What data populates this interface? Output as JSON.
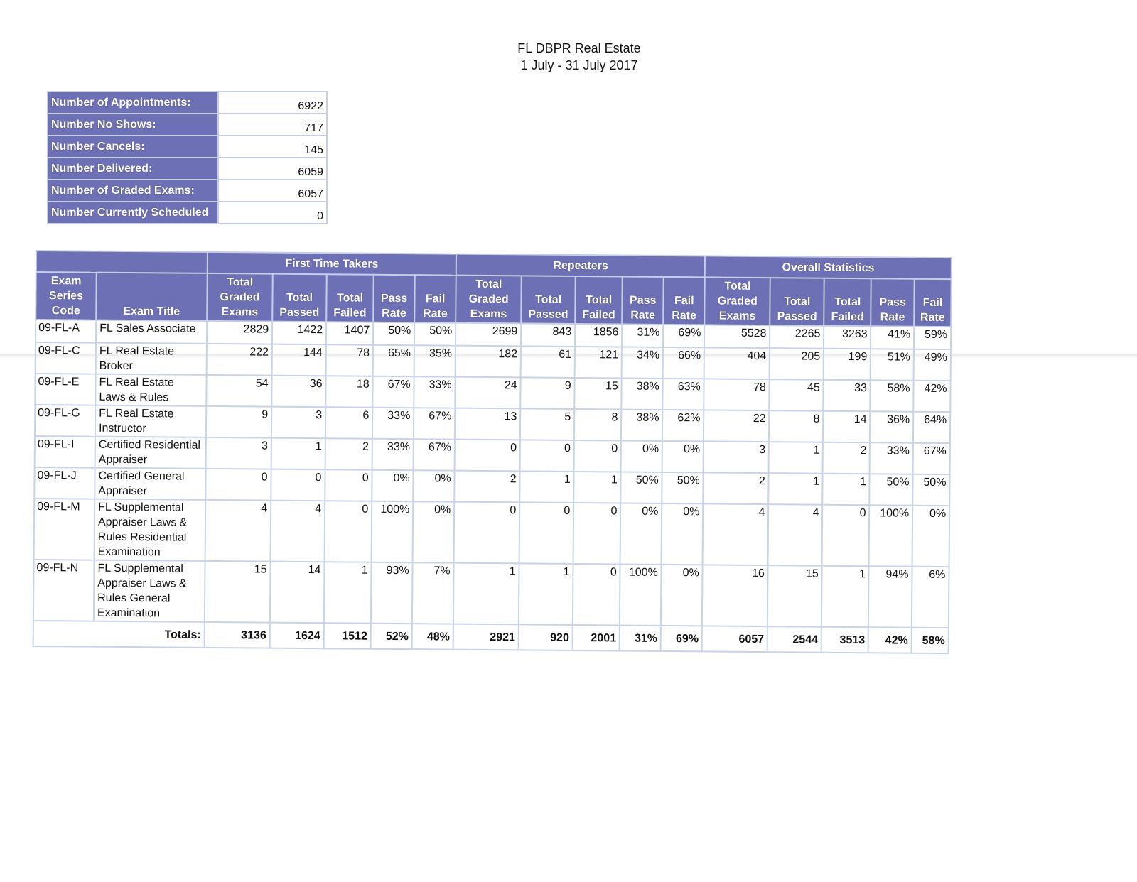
{
  "header": {
    "title": "FL DBPR Real Estate",
    "date_range": "1 July - 31 July 2017"
  },
  "summary": [
    {
      "label": "Number of Appointments:",
      "value": "6922"
    },
    {
      "label": "Number No Shows:",
      "value": "717"
    },
    {
      "label": "Number Cancels:",
      "value": "145"
    },
    {
      "label": "Number Delivered:",
      "value": "6059"
    },
    {
      "label": "Number of Graded Exams:",
      "value": "6057"
    },
    {
      "label": "Number Currently Scheduled",
      "value": "0"
    }
  ],
  "table": {
    "groups": [
      "First Time Takers",
      "Repeaters",
      "Overall Statistics"
    ],
    "columns": {
      "code": "Exam Series Code",
      "title": "Exam Title",
      "graded": "Total Graded Exams",
      "passed": "Total Passed",
      "failed": "Total Failed",
      "pass_rate": "Pass Rate",
      "fail_rate": "Fail Rate"
    },
    "rows": [
      {
        "code": "09-FL-A",
        "title": "FL Sales Associate",
        "ftt": [
          "2829",
          "1422",
          "1407",
          "50%",
          "50%"
        ],
        "rep": [
          "2699",
          "843",
          "1856",
          "31%",
          "69%"
        ],
        "all": [
          "5528",
          "2265",
          "3263",
          "41%",
          "59%"
        ]
      },
      {
        "code": "09-FL-C",
        "title": "FL Real Estate Broker",
        "ftt": [
          "222",
          "144",
          "78",
          "65%",
          "35%"
        ],
        "rep": [
          "182",
          "61",
          "121",
          "34%",
          "66%"
        ],
        "all": [
          "404",
          "205",
          "199",
          "51%",
          "49%"
        ]
      },
      {
        "code": "09-FL-E",
        "title": "FL Real Estate Laws & Rules",
        "ftt": [
          "54",
          "36",
          "18",
          "67%",
          "33%"
        ],
        "rep": [
          "24",
          "9",
          "15",
          "38%",
          "63%"
        ],
        "all": [
          "78",
          "45",
          "33",
          "58%",
          "42%"
        ]
      },
      {
        "code": "09-FL-G",
        "title": "FL Real Estate Instructor",
        "ftt": [
          "9",
          "3",
          "6",
          "33%",
          "67%"
        ],
        "rep": [
          "13",
          "5",
          "8",
          "38%",
          "62%"
        ],
        "all": [
          "22",
          "8",
          "14",
          "36%",
          "64%"
        ]
      },
      {
        "code": "09-FL-I",
        "title": "Certified Residential Appraiser",
        "ftt": [
          "3",
          "1",
          "2",
          "33%",
          "67%"
        ],
        "rep": [
          "0",
          "0",
          "0",
          "0%",
          "0%"
        ],
        "all": [
          "3",
          "1",
          "2",
          "33%",
          "67%"
        ]
      },
      {
        "code": "09-FL-J",
        "title": "Certified General Appraiser",
        "ftt": [
          "0",
          "0",
          "0",
          "0%",
          "0%"
        ],
        "rep": [
          "2",
          "1",
          "1",
          "50%",
          "50%"
        ],
        "all": [
          "2",
          "1",
          "1",
          "50%",
          "50%"
        ]
      },
      {
        "code": "09-FL-M",
        "title": "FL Supplemental Appraiser Laws & Rules Residential Examination",
        "ftt": [
          "4",
          "4",
          "0",
          "100%",
          "0%"
        ],
        "rep": [
          "0",
          "0",
          "0",
          "0%",
          "0%"
        ],
        "all": [
          "4",
          "4",
          "0",
          "100%",
          "0%"
        ]
      },
      {
        "code": "09-FL-N",
        "title": "FL Supplemental Appraiser Laws & Rules General Examination",
        "ftt": [
          "15",
          "14",
          "1",
          "93%",
          "7%"
        ],
        "rep": [
          "1",
          "1",
          "0",
          "100%",
          "0%"
        ],
        "all": [
          "16",
          "15",
          "1",
          "94%",
          "6%"
        ]
      }
    ],
    "totals": {
      "label": "Totals:",
      "ftt": [
        "3136",
        "1624",
        "1512",
        "52%",
        "48%"
      ],
      "rep": [
        "2921",
        "920",
        "2001",
        "31%",
        "69%"
      ],
      "all": [
        "6057",
        "2544",
        "3513",
        "42%",
        "58%"
      ]
    }
  },
  "colors": {
    "header_fill": "#6e70b5",
    "grid_line": "#c9d3e8"
  }
}
